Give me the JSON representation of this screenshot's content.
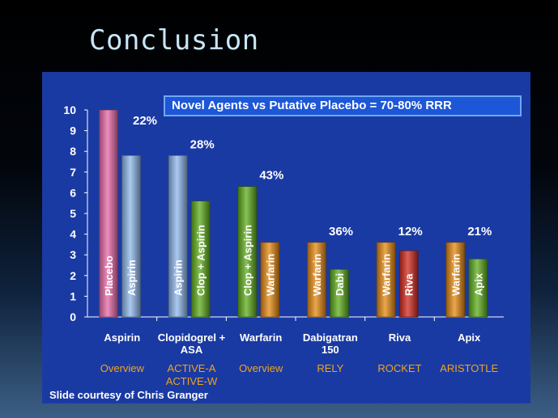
{
  "slide": {
    "title": "Conclusion",
    "credit": "Slide courtesy of Chris Granger"
  },
  "colors": {
    "panel": "#1a3aa3",
    "pink": "#e86aa8",
    "lightblue": "#8fb8ec",
    "green": "#5fae1c",
    "orange": "#e68a12",
    "red": "#d22a1e",
    "gold_text": "#f0a41c"
  },
  "chart_data": {
    "type": "bar",
    "title": "Novel Agents vs Putative Placebo = 70-80%  RRR",
    "ylim": [
      0,
      10
    ],
    "yticks": [
      "0",
      "1",
      "2",
      "3",
      "4",
      "5",
      "6",
      "7",
      "8",
      "9",
      "10"
    ],
    "groups": [
      {
        "category": "Aspirin",
        "category_line2": "",
        "trial": "Overview",
        "trial_line2": "",
        "rrr": "22%",
        "bars": [
          {
            "label": "Placebo",
            "value": 10.0,
            "color": "pink"
          },
          {
            "label": "Aspirin",
            "value": 7.8,
            "color": "lightblue"
          }
        ]
      },
      {
        "category": "Clopidogrel +",
        "category_line2": "ASA",
        "trial": "ACTIVE-A",
        "trial_line2": "ACTIVE-W",
        "rrr": "28%",
        "bars": [
          {
            "label": "Aspirin",
            "value": 7.8,
            "color": "lightblue"
          },
          {
            "label": "Clop + Aspirin",
            "value": 5.6,
            "color": "green"
          }
        ]
      },
      {
        "category": "Warfarin",
        "category_line2": "",
        "trial": "Overview",
        "trial_line2": "",
        "rrr": "43%",
        "bars": [
          {
            "label": "Clop + Aspirin",
            "value": 6.3,
            "color": "green"
          },
          {
            "label": "Warfarin",
            "value": 3.6,
            "color": "orange"
          }
        ]
      },
      {
        "category": "Dabigatran",
        "category_line2": "150",
        "trial": "RELY",
        "trial_line2": "",
        "rrr": "36%",
        "bars": [
          {
            "label": "Warfarin",
            "value": 3.6,
            "color": "orange"
          },
          {
            "label": "Dabi",
            "value": 2.3,
            "color": "green"
          }
        ]
      },
      {
        "category": "Riva",
        "category_line2": "",
        "trial": "ROCKET",
        "trial_line2": "",
        "rrr": "12%",
        "bars": [
          {
            "label": "Warfarin",
            "value": 3.6,
            "color": "orange"
          },
          {
            "label": "Riva",
            "value": 3.2,
            "color": "red"
          }
        ]
      },
      {
        "category": "Apix",
        "category_line2": "",
        "trial": "ARISTOTLE",
        "trial_line2": "",
        "rrr": "21%",
        "bars": [
          {
            "label": "Warfarin",
            "value": 3.6,
            "color": "orange"
          },
          {
            "label": "Apix",
            "value": 2.8,
            "color": "green"
          }
        ]
      }
    ]
  }
}
